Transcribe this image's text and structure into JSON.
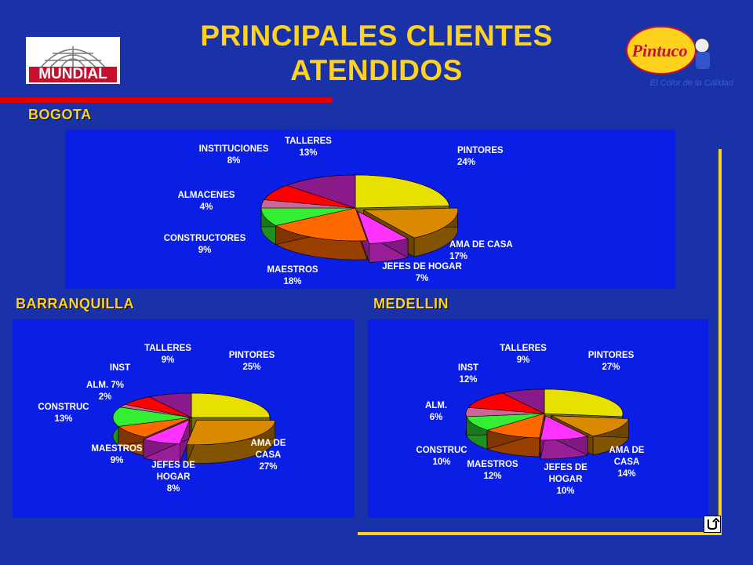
{
  "title": {
    "line1": "PRINCIPALES CLIENTES",
    "line2": "ATENDIDOS"
  },
  "logos": {
    "left": "MUNDIAL",
    "right": "Pintuco",
    "right_tagline": "El Color de la Calidad"
  },
  "colors": {
    "background": "#1a32a8",
    "panel": "#0a1ee6",
    "accent": "#ffd21e",
    "red_bar": "#e00000"
  },
  "icons": {
    "return": "return-arrow-icon"
  },
  "chart_data": [
    {
      "type": "pie",
      "title": "BOGOTA",
      "categories": [
        "PINTORES",
        "AMA DE CASA",
        "JEFES DE HOGAR",
        "MAESTROS",
        "CONSTRUCTORES",
        "ALMACENES",
        "INSTITUCIONES",
        "TALLERES"
      ],
      "values": [
        24,
        17,
        7,
        18,
        9,
        4,
        8,
        13
      ],
      "labels": [
        [
          "PINTORES",
          "24%"
        ],
        [
          "AMA DE CASA",
          "17%"
        ],
        [
          "JEFES DE HOGAR",
          "7%"
        ],
        [
          "MAESTROS",
          "18%"
        ],
        [
          "CONSTRUCTORES",
          "9%"
        ],
        [
          "ALMACENES",
          "4%"
        ],
        [
          "INSTITUCIONES",
          "8%"
        ],
        [
          "TALLERES",
          "13%"
        ]
      ],
      "colors": [
        "#e8e000",
        "#d98a00",
        "#ff33ff",
        "#ff6a00",
        "#33ee33",
        "#cc6699",
        "#ff0000",
        "#8a1a8a"
      ]
    },
    {
      "type": "pie",
      "title": "BARRANQUILLA",
      "categories": [
        "PINTORES",
        "AMA DE CASA",
        "JEFES DE HOGAR",
        "MAESTROS",
        "CONSTRUC",
        "ALM.",
        "INST",
        "TALLERES"
      ],
      "values": [
        25,
        27,
        8,
        9,
        13,
        2,
        7,
        9
      ],
      "labels": [
        [
          "PINTORES",
          "25%"
        ],
        [
          "AMA DE",
          "CASA",
          "27%"
        ],
        [
          "JEFES DE",
          "HOGAR",
          "8%"
        ],
        [
          "MAESTROS",
          "9%"
        ],
        [
          "CONSTRUC",
          "13%"
        ],
        [
          "ALM. 7%",
          "2%"
        ],
        [
          "INST"
        ],
        [
          "TALLERES",
          "9%"
        ]
      ],
      "colors": [
        "#e8e000",
        "#d98a00",
        "#ff33ff",
        "#ff6a00",
        "#33ee33",
        "#cc6699",
        "#ff0000",
        "#8a1a8a"
      ]
    },
    {
      "type": "pie",
      "title": "MEDELLIN",
      "categories": [
        "PINTORES",
        "AMA DE CASA",
        "JEFES DE HOGAR",
        "MAESTROS",
        "CONSTRUC",
        "ALM.",
        "INST",
        "TALLERES"
      ],
      "values": [
        27,
        14,
        10,
        12,
        10,
        6,
        12,
        9
      ],
      "labels": [
        [
          "PINTORES",
          "27%"
        ],
        [
          "AMA DE",
          "CASA",
          "14%"
        ],
        [
          "JEFES DE",
          "HOGAR",
          "10%"
        ],
        [
          "MAESTROS",
          "12%"
        ],
        [
          "CONSTRUC",
          "10%"
        ],
        [
          "ALM.",
          "6%"
        ],
        [
          "INST",
          "12%"
        ],
        [
          "TALLERES",
          "9%"
        ]
      ],
      "colors": [
        "#e8e000",
        "#d98a00",
        "#ff33ff",
        "#ff6a00",
        "#33ee33",
        "#cc6699",
        "#ff0000",
        "#8a1a8a"
      ]
    }
  ]
}
